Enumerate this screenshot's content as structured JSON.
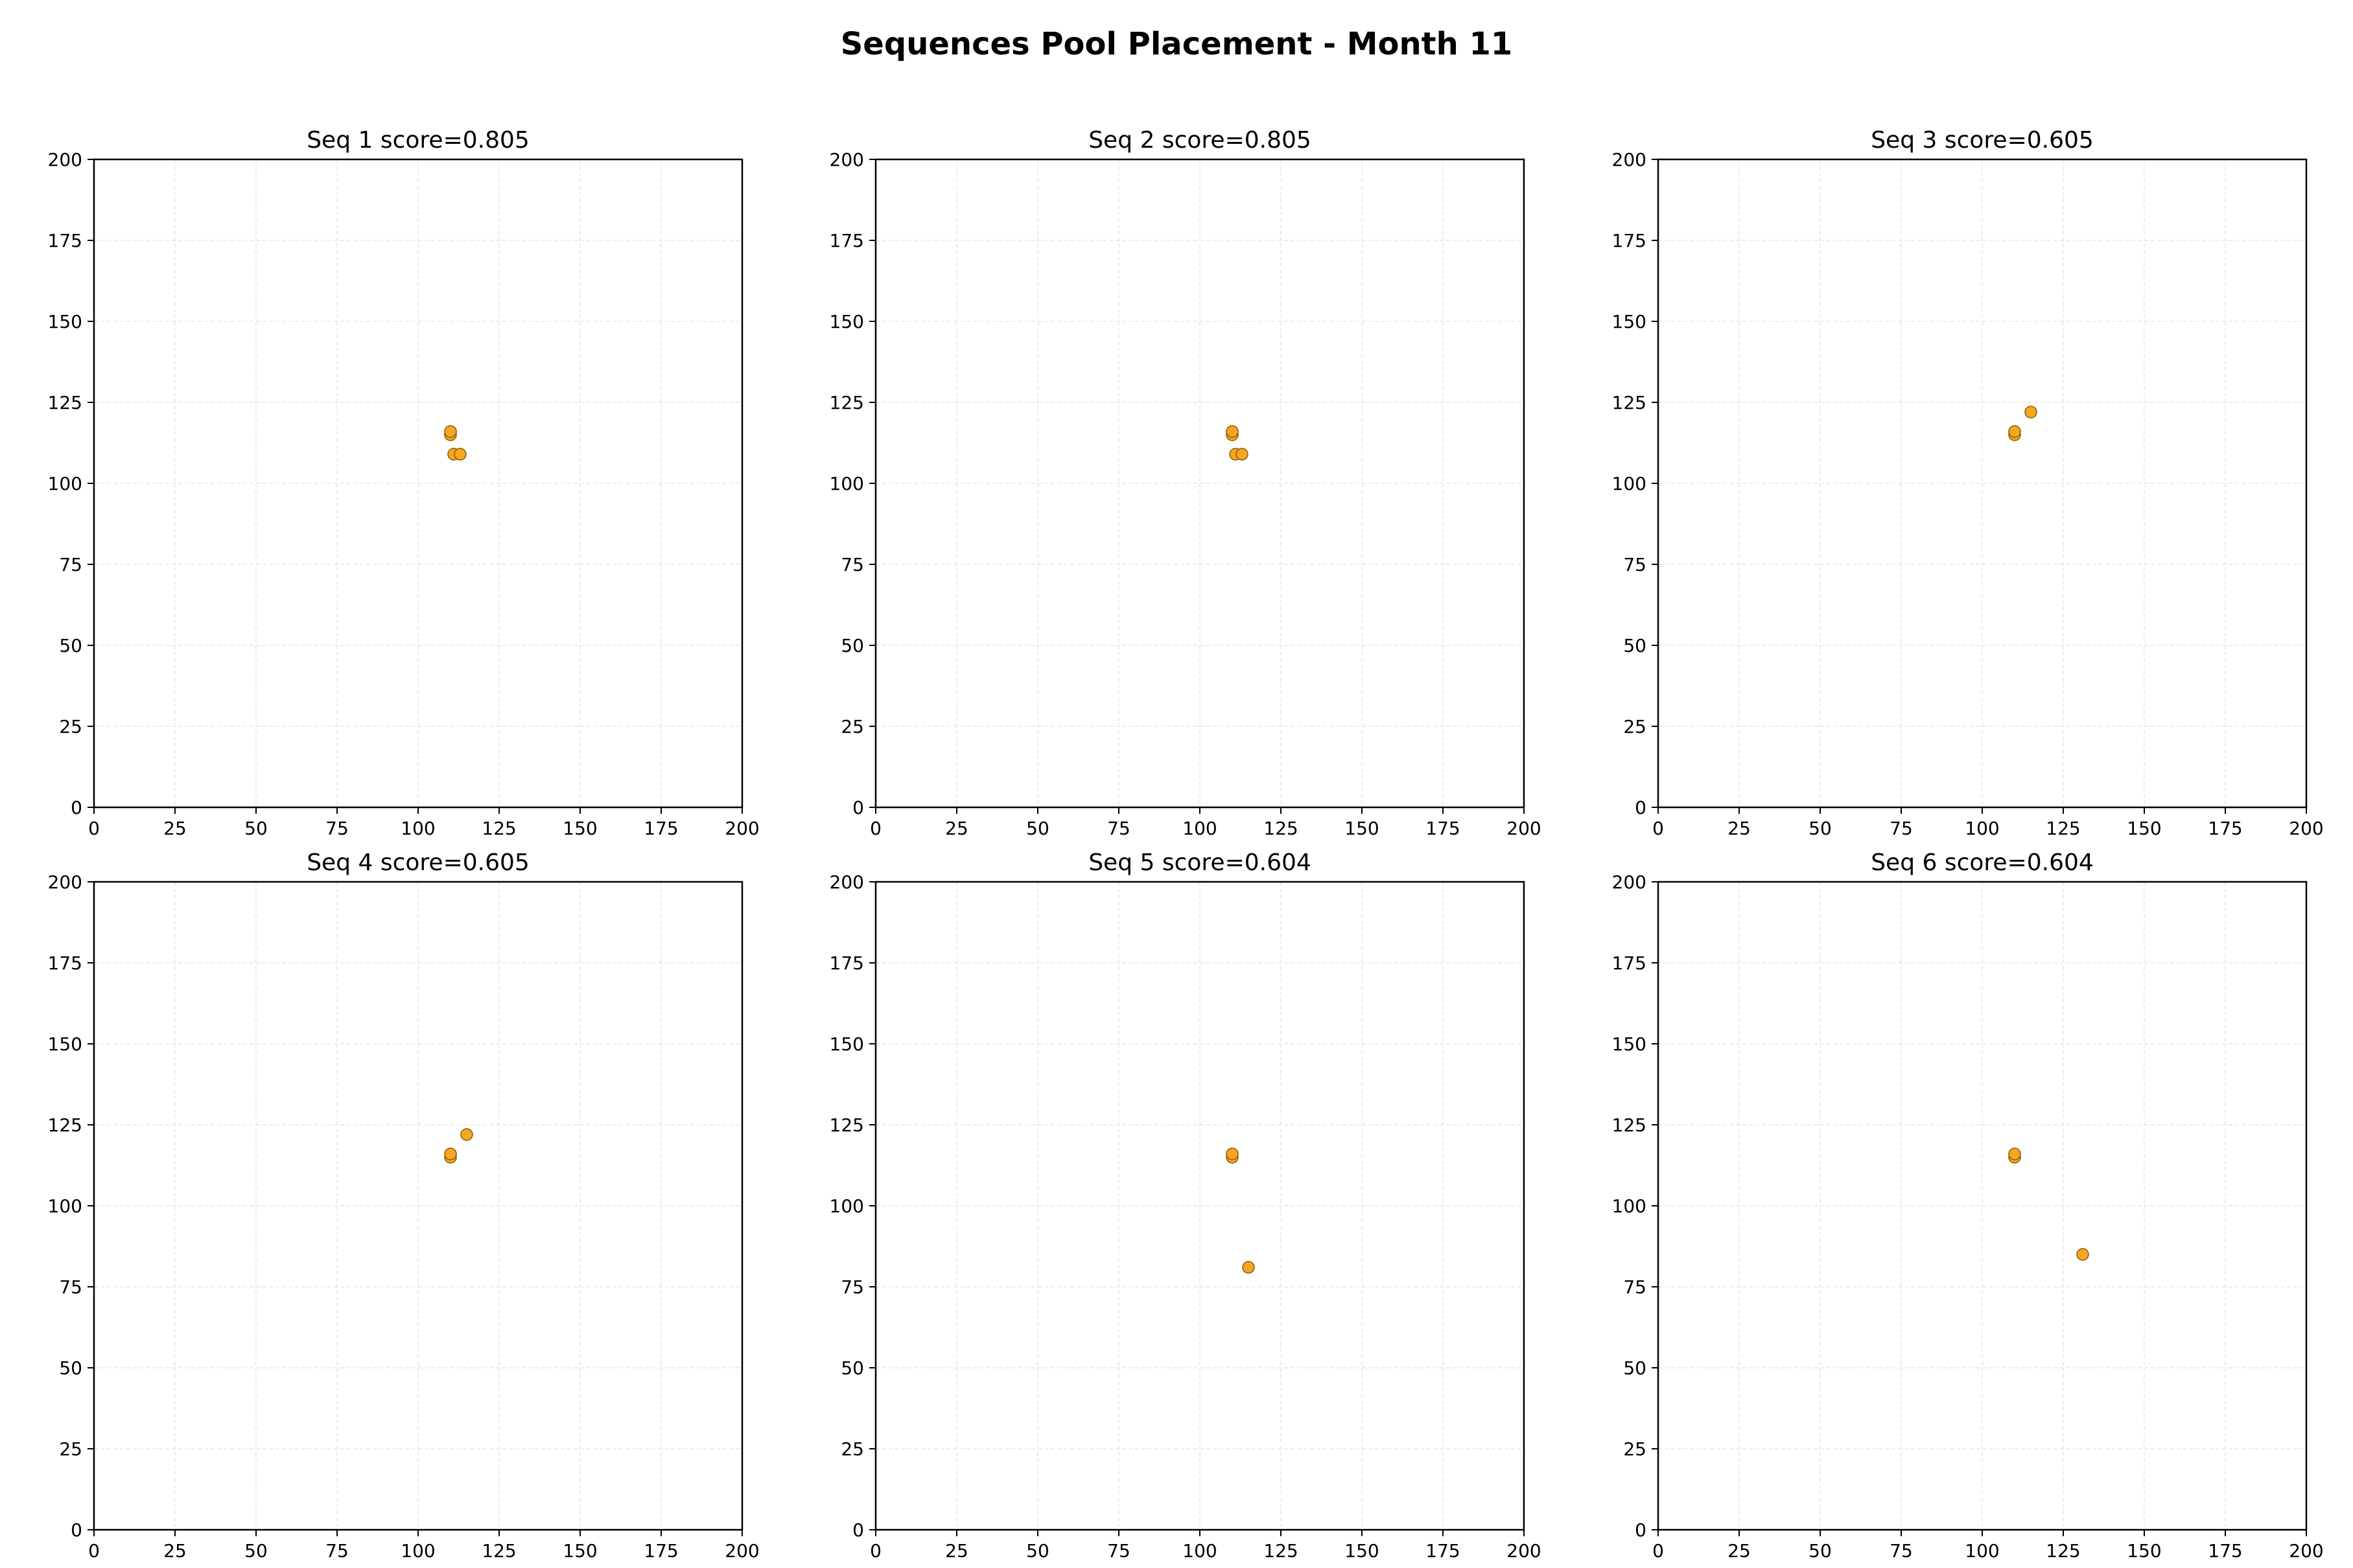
{
  "figure": {
    "title": "Sequences Pool Placement - Month 11"
  },
  "style": {
    "point_fill": "#f5a623",
    "point_edge": "#8a5a00",
    "axis_color": "#000000",
    "grid_color": "#e6e6e6"
  },
  "chart_data": [
    {
      "type": "scatter",
      "title": "Seq 1  score=0.805",
      "xlim": [
        0,
        200
      ],
      "ylim": [
        200,
        0
      ],
      "y_inverted": true,
      "grid": true,
      "xticks": [
        "0",
        "25",
        "50",
        "75",
        "100",
        "125",
        "150",
        "175",
        "200"
      ],
      "yticks": [
        "0",
        "25",
        "50",
        "75",
        "100",
        "125",
        "150",
        "175",
        "200"
      ],
      "x": [
        111,
        113,
        110,
        110
      ],
      "y": [
        109,
        109,
        115,
        116
      ]
    },
    {
      "type": "scatter",
      "title": "Seq 2  score=0.805",
      "xlim": [
        0,
        200
      ],
      "ylim": [
        200,
        0
      ],
      "y_inverted": true,
      "grid": true,
      "xticks": [
        "0",
        "25",
        "50",
        "75",
        "100",
        "125",
        "150",
        "175",
        "200"
      ],
      "yticks": [
        "0",
        "25",
        "50",
        "75",
        "100",
        "125",
        "150",
        "175",
        "200"
      ],
      "x": [
        111,
        113,
        110,
        110
      ],
      "y": [
        109,
        109,
        115,
        116
      ]
    },
    {
      "type": "scatter",
      "title": "Seq 3  score=0.605",
      "xlim": [
        0,
        200
      ],
      "ylim": [
        200,
        0
      ],
      "y_inverted": true,
      "grid": true,
      "xticks": [
        "0",
        "25",
        "50",
        "75",
        "100",
        "125",
        "150",
        "175",
        "200"
      ],
      "yticks": [
        "0",
        "25",
        "50",
        "75",
        "100",
        "125",
        "150",
        "175",
        "200"
      ],
      "x": [
        110,
        110,
        115
      ],
      "y": [
        115,
        116,
        122
      ]
    },
    {
      "type": "scatter",
      "title": "Seq 4  score=0.605",
      "xlim": [
        0,
        200
      ],
      "ylim": [
        200,
        0
      ],
      "y_inverted": true,
      "grid": true,
      "xticks": [
        "0",
        "25",
        "50",
        "75",
        "100",
        "125",
        "150",
        "175",
        "200"
      ],
      "yticks": [
        "0",
        "25",
        "50",
        "75",
        "100",
        "125",
        "150",
        "175",
        "200"
      ],
      "x": [
        110,
        110,
        115
      ],
      "y": [
        115,
        116,
        122
      ]
    },
    {
      "type": "scatter",
      "title": "Seq 5  score=0.604",
      "xlim": [
        0,
        200
      ],
      "ylim": [
        200,
        0
      ],
      "y_inverted": true,
      "grid": true,
      "xticks": [
        "0",
        "25",
        "50",
        "75",
        "100",
        "125",
        "150",
        "175",
        "200"
      ],
      "yticks": [
        "0",
        "25",
        "50",
        "75",
        "100",
        "125",
        "150",
        "175",
        "200"
      ],
      "x": [
        115,
        110,
        110
      ],
      "y": [
        81,
        115,
        116
      ]
    },
    {
      "type": "scatter",
      "title": "Seq 6  score=0.604",
      "xlim": [
        0,
        200
      ],
      "ylim": [
        200,
        0
      ],
      "y_inverted": true,
      "grid": true,
      "xticks": [
        "0",
        "25",
        "50",
        "75",
        "100",
        "125",
        "150",
        "175",
        "200"
      ],
      "yticks": [
        "0",
        "25",
        "50",
        "75",
        "100",
        "125",
        "150",
        "175",
        "200"
      ],
      "x": [
        131,
        110,
        110
      ],
      "y": [
        85,
        115,
        116
      ]
    }
  ]
}
